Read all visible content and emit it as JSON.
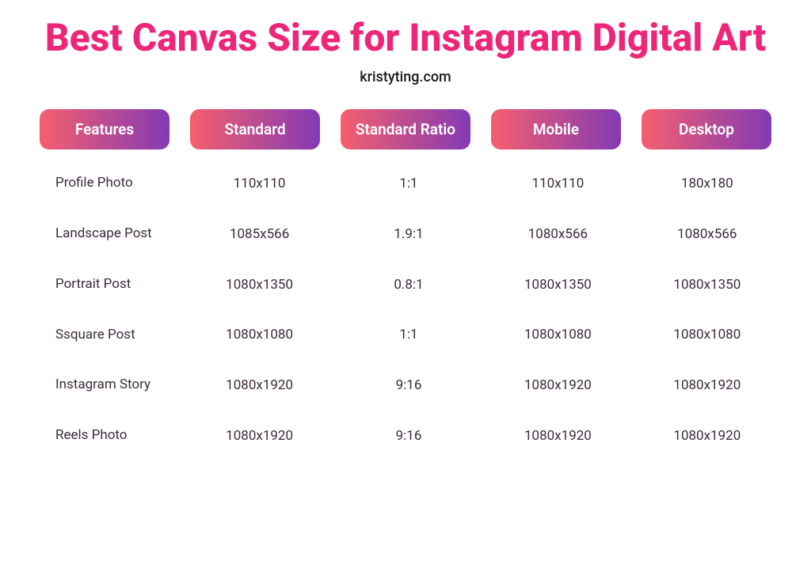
{
  "title": "Best Canvas Size for Instagram Digital Art",
  "subtitle": "kristyting.com",
  "colors": {
    "title": "#ed2679",
    "subtitle": "#1a1a1a",
    "body_text": "#3d2b3d",
    "gradient_start": "#f55f6e",
    "gradient_end": "#833ab4",
    "background": "#ffffff"
  },
  "typography": {
    "title_fontsize": 48,
    "title_fontweight": 800,
    "subtitle_fontsize": 18,
    "header_fontsize": 19,
    "header_fontweight": 600,
    "cell_fontsize": 17
  },
  "table": {
    "headers": [
      "Features",
      "Standard",
      "Standard Ratio",
      "Mobile",
      "Desktop"
    ],
    "header_border_radius": 12,
    "column_gap": 26,
    "rows": [
      {
        "feature": "Profile Photo",
        "standard": "110x110",
        "ratio": "1:1",
        "mobile": "110x110",
        "desktop": "180x180"
      },
      {
        "feature": "Landscape Post",
        "standard": "1085x566",
        "ratio": "1.9:1",
        "mobile": "1080x566",
        "desktop": "1080x566"
      },
      {
        "feature": "Portrait Post",
        "standard": "1080x1350",
        "ratio": "0.8:1",
        "mobile": "1080x1350",
        "desktop": "1080x1350"
      },
      {
        "feature": "Ssquare Post",
        "standard": "1080x1080",
        "ratio": "1:1",
        "mobile": "1080x1080",
        "desktop": "1080x1080"
      },
      {
        "feature": "Instagram Story",
        "standard": "1080x1920",
        "ratio": "9:16",
        "mobile": "1080x1920",
        "desktop": "1080x1920"
      },
      {
        "feature": "Reels Photo",
        "standard": "1080x1920",
        "ratio": "9:16",
        "mobile": "1080x1920",
        "desktop": "1080x1920"
      }
    ]
  }
}
